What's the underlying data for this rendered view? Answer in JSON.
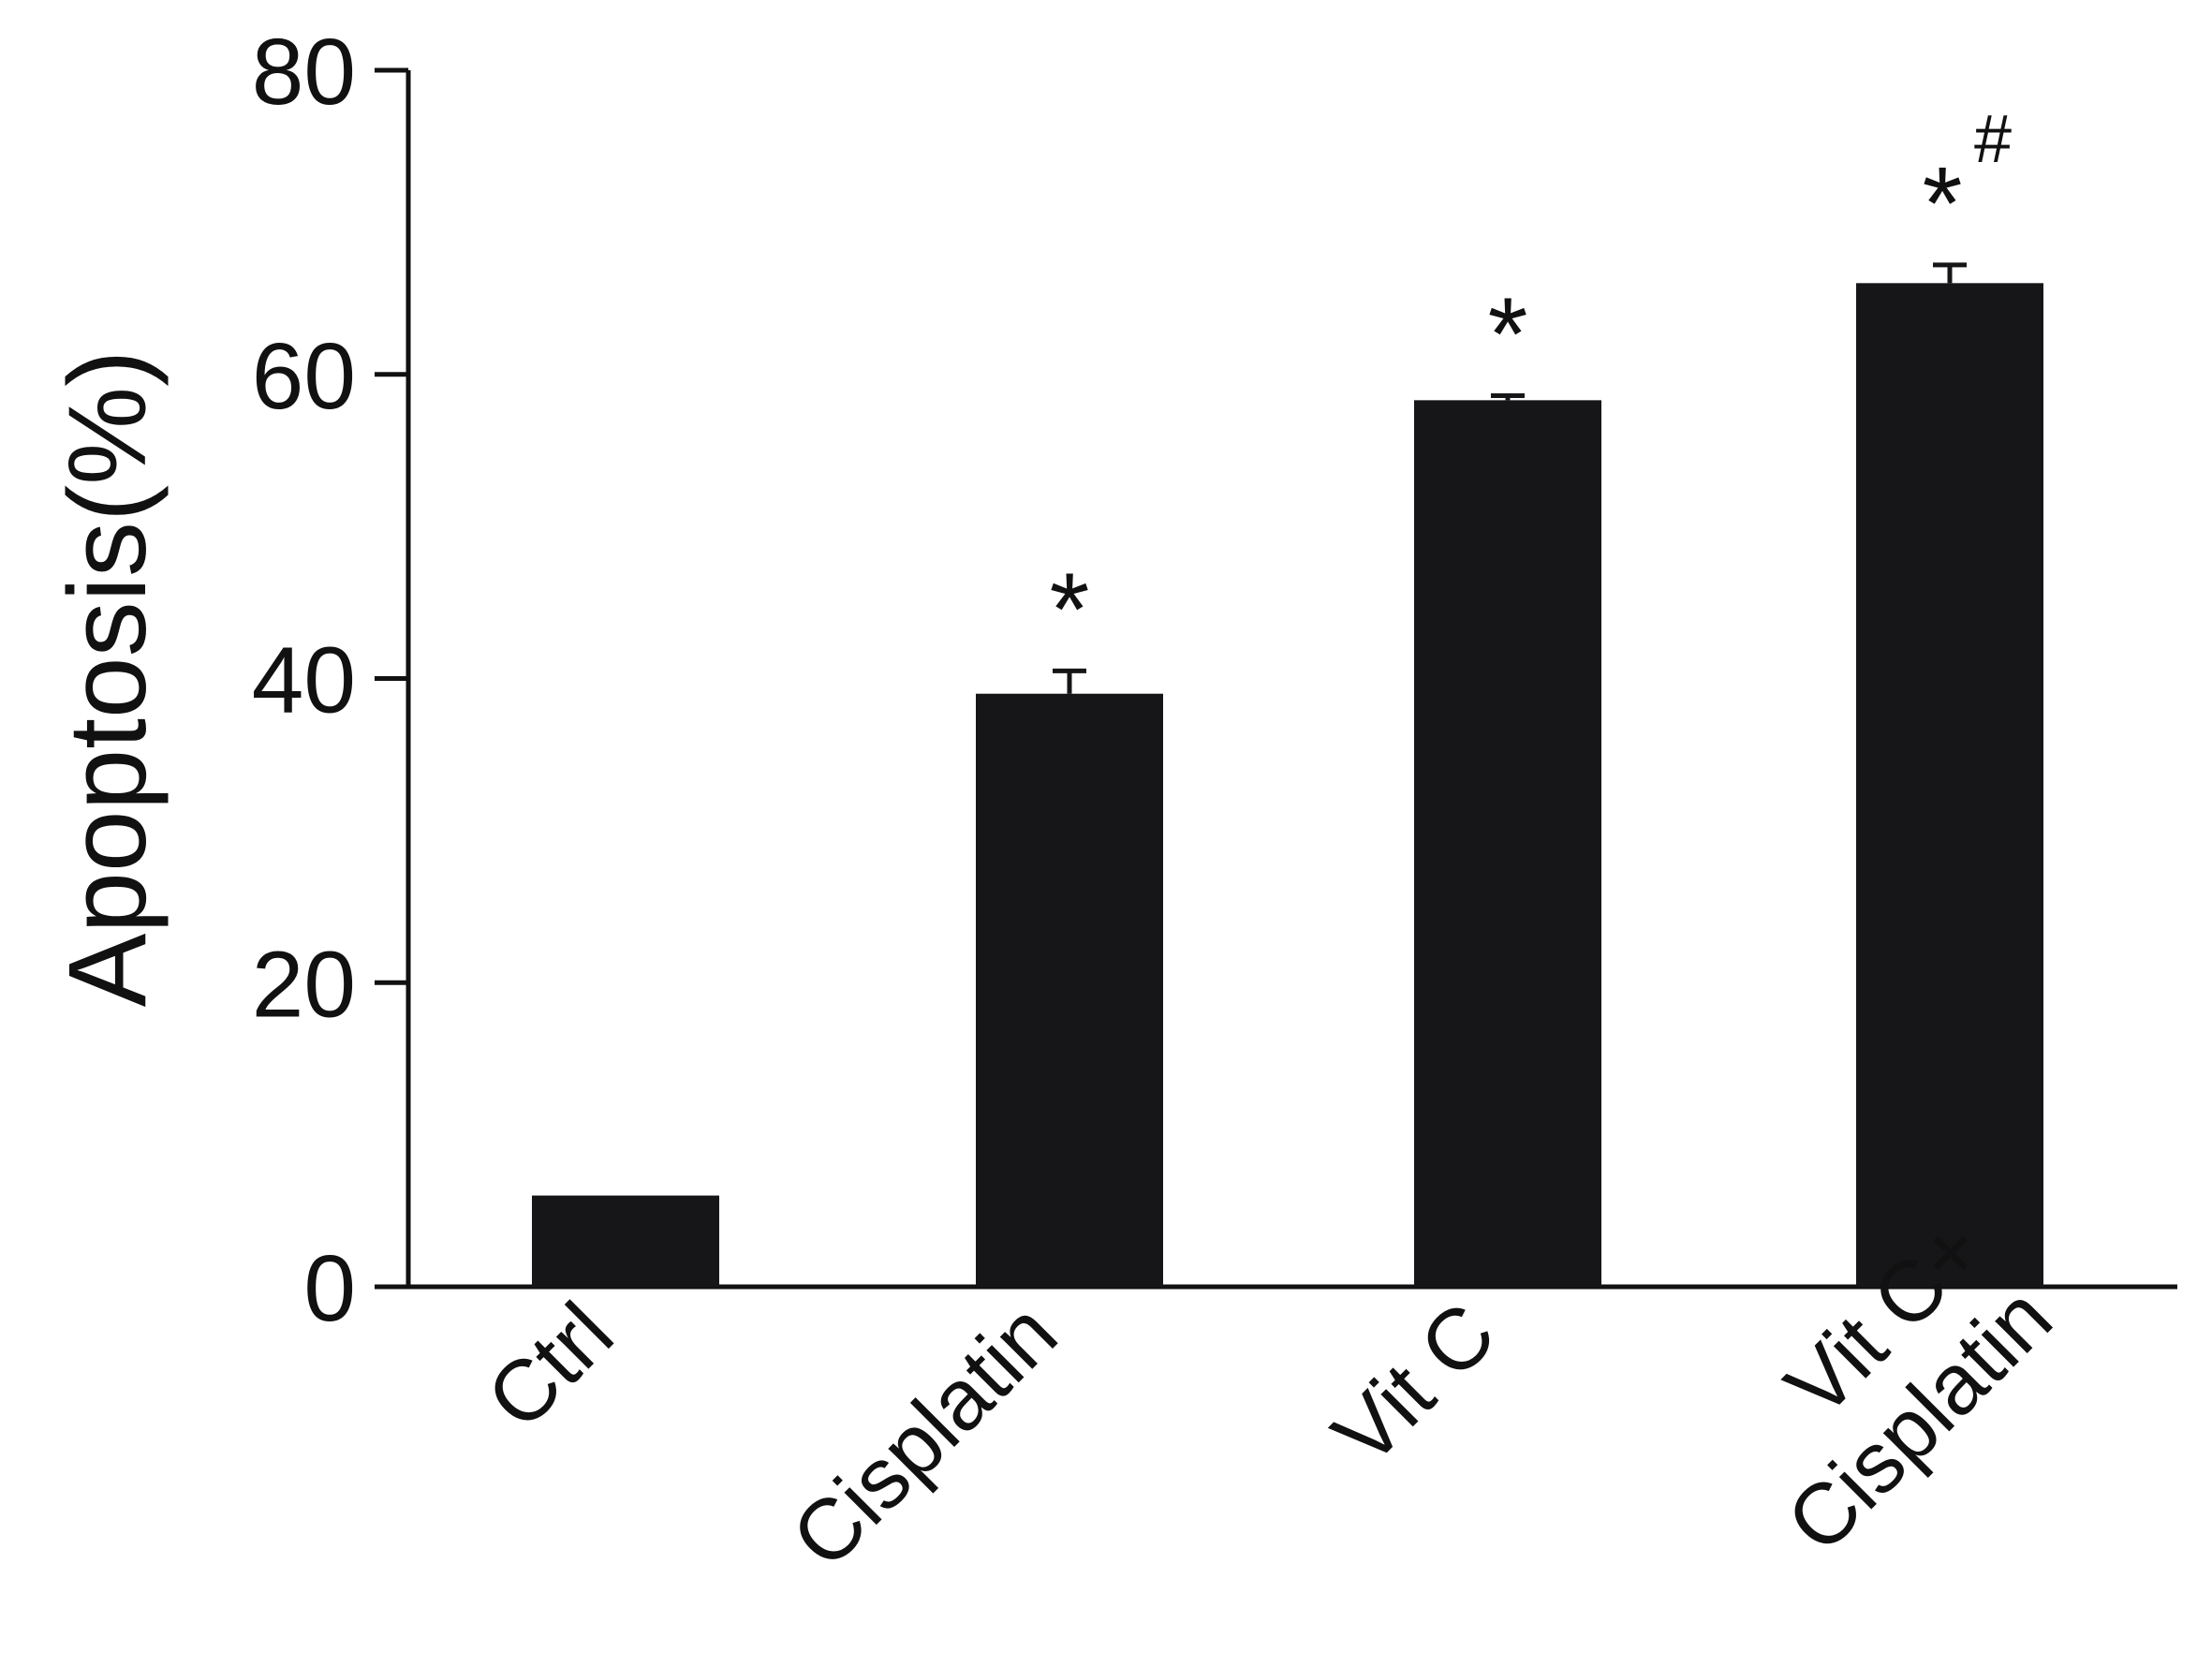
{
  "chart_data": {
    "type": "bar",
    "categories": [
      [
        "Ctrl"
      ],
      [
        "Cisplatin"
      ],
      [
        "Vit C"
      ],
      [
        "Vit C+",
        "Cisplatin"
      ]
    ],
    "values": [
      6,
      39,
      58.3,
      66
    ],
    "errors": [
      0,
      1.5,
      0.3,
      1.2
    ],
    "annotations": [
      {
        "star": "",
        "hash": ""
      },
      {
        "star": "*",
        "hash": ""
      },
      {
        "star": "*",
        "hash": ""
      },
      {
        "star": "*",
        "hash": "#"
      }
    ],
    "ylabel": "Apoptosis(%)",
    "xlabel": "",
    "title": "",
    "ylim": [
      0,
      80
    ],
    "yticks": [
      0,
      20,
      40,
      60,
      80
    ],
    "grid": false,
    "colors": {
      "bar": "#161618",
      "axis": "#111111"
    }
  }
}
